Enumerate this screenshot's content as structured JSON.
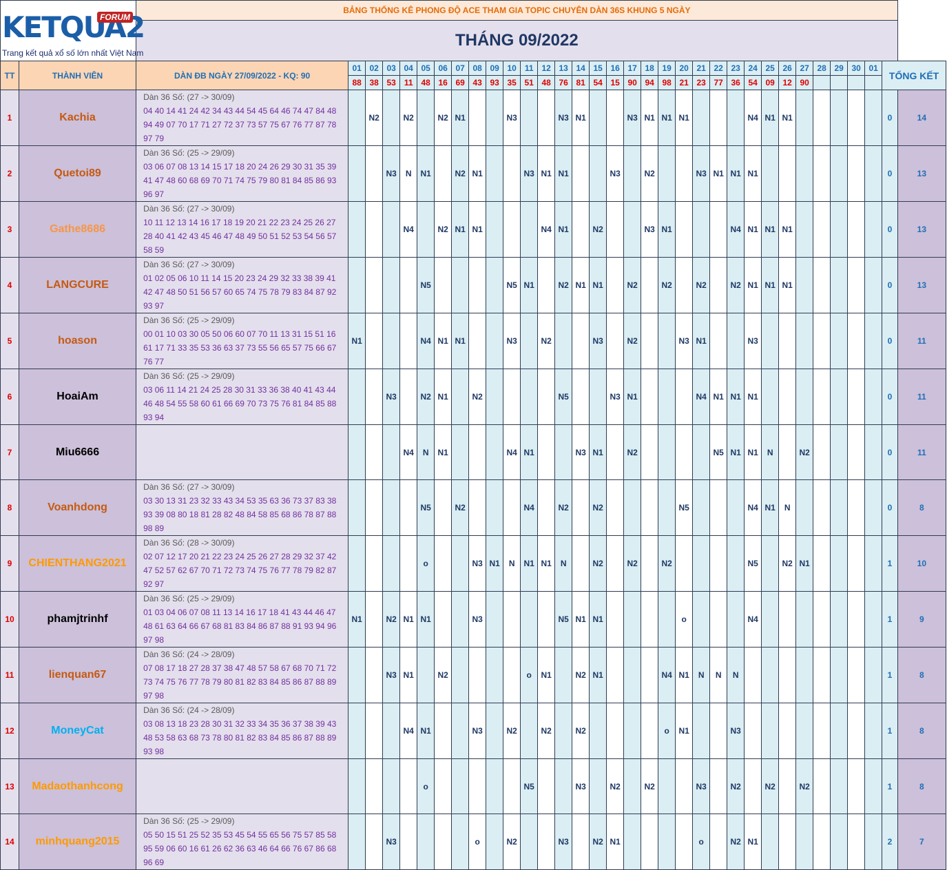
{
  "logo": {
    "main": "KETQUA2",
    "badge": "FORUM",
    "tagline": "Trang kết quả xổ số lớn nhất Việt Nam"
  },
  "title": "BẢNG THỐNG KÊ PHONG ĐỘ ACE THAM GIA TOPIC CHUYÊN DÀN 36S KHUNG 5 NGÀY",
  "month": "THÁNG 09/2022",
  "headers": {
    "tt": "TT",
    "member": "THÀNH VIÊN",
    "dan": "DÀN ĐB NGÀY 27/09/2022 - KQ: 90",
    "summary": "TỔNG KẾT"
  },
  "days": [
    "01",
    "02",
    "03",
    "04",
    "05",
    "06",
    "07",
    "08",
    "09",
    "10",
    "11",
    "12",
    "13",
    "14",
    "15",
    "16",
    "17",
    "18",
    "19",
    "20",
    "21",
    "22",
    "23",
    "24",
    "25",
    "26",
    "27",
    "28",
    "29",
    "30",
    "01"
  ],
  "results": [
    "88",
    "38",
    "53",
    "11",
    "48",
    "16",
    "69",
    "43",
    "93",
    "35",
    "51",
    "48",
    "76",
    "81",
    "54",
    "15",
    "90",
    "94",
    "98",
    "21",
    "23",
    "77",
    "36",
    "54",
    "09",
    "12",
    "90",
    "",
    "",
    "",
    ""
  ],
  "colors": {
    "red": "#e00000",
    "blue": "#1f6eb5",
    "navy": "#1f3864",
    "purple": "#7030a0"
  },
  "members": [
    {
      "tt": "1",
      "name": "Kachia",
      "name_color": "#c55a11",
      "dan_header": "Dàn 36 Số: (27 -> 30/09)",
      "dan_numbers": "04 40 14 41 24 42 34 43 44 54 45 64 46 74 47 84 48 94 49 07 70 17 71 27 72 37 73 57 75 67 76 77 87 78 97 79",
      "marks": [
        "",
        "N2",
        "",
        "N2",
        "",
        "N2",
        "N1",
        "",
        "",
        "N3",
        "",
        "",
        "N3",
        "N1",
        "",
        "",
        "N3",
        "N1",
        "N1",
        "N1",
        "",
        "",
        "",
        "N4",
        "N1",
        "N1",
        "",
        "",
        "",
        "",
        ""
      ],
      "sum1": "0",
      "sum2": "14"
    },
    {
      "tt": "2",
      "name": "Quetoi89",
      "name_color": "#c55a11",
      "dan_header": "Dàn 36 Số: (25 -> 29/09)",
      "dan_numbers": "03 06 07 08 13 14 15 17 18 20 24 26 29 30 31 35 39 41 47 48 60 68 69 70 71 74 75 79 80 81 84 85 86 93 96 97",
      "marks": [
        "",
        "",
        "N3",
        "N",
        "N1",
        "",
        "N2",
        "N1",
        "",
        "",
        "N3",
        "N1",
        "N1",
        "",
        "",
        "N3",
        "",
        "N2",
        "",
        "",
        "N3",
        "N1",
        "N1",
        "N1",
        "",
        "",
        "",
        "",
        "",
        "",
        ""
      ],
      "sum1": "0",
      "sum2": "13"
    },
    {
      "tt": "3",
      "name": "Gathe8686",
      "name_color": "#f79646",
      "dan_header": "Dàn 36 Số: (27 -> 30/09)",
      "dan_numbers": "10 11 12 13 14 16 17 18 19 20 21 22 23 24 25 26 27 28 40 41 42 43 45 46 47 48 49 50 51 52 53 54 56 57 58 59",
      "marks": [
        "",
        "",
        "",
        "N4",
        "",
        "N2",
        "N1",
        "N1",
        "",
        "",
        "",
        "N4",
        "N1",
        "",
        "N2",
        "",
        "",
        "N3",
        "N1",
        "",
        "",
        "",
        "N4",
        "N1",
        "N1",
        "N1",
        "",
        "",
        "",
        "",
        ""
      ],
      "sum1": "0",
      "sum2": "13"
    },
    {
      "tt": "4",
      "name": "LANGCURE",
      "name_color": "#c55a11",
      "dan_header": "Dàn 36 Số: (27 -> 30/09)",
      "dan_numbers": "01 02 05 06 10 11 14 15 20 23 24 29 32 33 38 39 41 42 47 48 50 51 56 57 60 65 74 75 78 79 83 84 87 92 93 97",
      "marks": [
        "",
        "",
        "",
        "",
        "N5",
        "",
        "",
        "",
        "",
        "N5",
        "N1",
        "",
        "N2",
        "N1",
        "N1",
        "",
        "N2",
        "",
        "N2",
        "",
        "N2",
        "",
        "N2",
        "N1",
        "N1",
        "N1",
        "",
        "",
        "",
        "",
        ""
      ],
      "sum1": "0",
      "sum2": "13"
    },
    {
      "tt": "5",
      "name": "hoason",
      "name_color": "#c55a11",
      "dan_header": "Dàn 36 Số: (25 -> 29/09)",
      "dan_numbers": "00 01 10 03 30 05 50 06 60 07 70 11 13 31 15 51 16 61 17 71 33 35 53 36 63 37 73 55 56 65 57 75 66 67 76 77",
      "marks": [
        "N1",
        "",
        "",
        "",
        "N4",
        "N1",
        "N1",
        "",
        "",
        "N3",
        "",
        "N2",
        "",
        "",
        "N3",
        "",
        "N2",
        "",
        "",
        "N3",
        "N1",
        "",
        "",
        "N3",
        "",
        "",
        "",
        "",
        "",
        "",
        ""
      ],
      "sum1": "0",
      "sum2": "11"
    },
    {
      "tt": "6",
      "name": "HoaiAm",
      "name_color": "#000000",
      "dan_header": "Dàn 36 Số: (25 -> 29/09)",
      "dan_numbers": "03 06 11 14 21 24 25 28 30 31 33 36 38 40 41 43 44 46 48 54 55 58 60 61 66 69 70 73 75 76 81 84 85 88 93 94",
      "marks": [
        "",
        "",
        "N3",
        "",
        "N2",
        "N1",
        "",
        "N2",
        "",
        "",
        "",
        "",
        "N5",
        "",
        "",
        "N3",
        "N1",
        "",
        "",
        "",
        "N4",
        "N1",
        "N1",
        "N1",
        "",
        "",
        "",
        "",
        "",
        "",
        ""
      ],
      "sum1": "0",
      "sum2": "11"
    },
    {
      "tt": "7",
      "name": "Miu6666",
      "name_color": "#000000",
      "dan_header": "",
      "dan_numbers": "",
      "marks": [
        "",
        "",
        "",
        "N4",
        "N",
        "N1",
        "",
        "",
        "",
        "N4",
        "N1",
        "",
        "",
        "N3",
        "N1",
        "",
        "N2",
        "",
        "",
        "",
        "",
        "N5",
        "N1",
        "N1",
        "N",
        "",
        "N2",
        "",
        "",
        "",
        ""
      ],
      "sum1": "0",
      "sum2": "11"
    },
    {
      "tt": "8",
      "name": "Voanhdong",
      "name_color": "#c55a11",
      "dan_header": "Dàn 36 Số: (27 -> 30/09)",
      "dan_numbers": "03 30 13 31 23 32 33 43 34 53 35 63 36 73 37 83 38 93 39 08 80 18 81 28 82 48 84 58 85 68 86 78 87 88 98 89",
      "marks": [
        "",
        "",
        "",
        "",
        "N5",
        "",
        "N2",
        "",
        "",
        "",
        "N4",
        "",
        "N2",
        "",
        "N2",
        "",
        "",
        "",
        "",
        "N5",
        "",
        "",
        "",
        "N4",
        "N1",
        "N",
        "",
        "",
        "",
        "",
        ""
      ],
      "sum1": "0",
      "sum2": "8"
    },
    {
      "tt": "9",
      "name": "CHIENTHANG2021",
      "name_color": "#ff9900",
      "dan_header": "Dàn 36 Số: (28 -> 30/09)",
      "dan_numbers": "02 07 12 17 20 21 22 23 24 25 26 27 28 29 32 37 42 47 52 57 62 67 70 71 72 73 74 75 76 77 78 79 82 87 92 97",
      "marks": [
        "",
        "",
        "",
        "",
        "o",
        "",
        "",
        "N3",
        "N1",
        "N",
        "N1",
        "N1",
        "N",
        "",
        "N2",
        "",
        "N2",
        "",
        "N2",
        "",
        "",
        "",
        "",
        "N5",
        "",
        "N2",
        "N1",
        "",
        "",
        "",
        ""
      ],
      "sum1": "1",
      "sum2": "10"
    },
    {
      "tt": "10",
      "name": "phamjtrinhf",
      "name_color": "#000000",
      "dan_header": "Dàn 36 Số: (25 -> 29/09)",
      "dan_numbers": "01 03 04 06 07 08 11 13 14 16 17 18 41 43 44 46 47 48 61 63 64 66 67 68 81 83 84 86 87 88 91 93 94 96 97 98",
      "marks": [
        "N1",
        "",
        "N2",
        "N1",
        "N1",
        "",
        "",
        "N3",
        "",
        "",
        "",
        "",
        "N5",
        "N1",
        "N1",
        "",
        "",
        "",
        "",
        "o",
        "",
        "",
        "",
        "N4",
        "",
        "",
        "",
        "",
        "",
        "",
        ""
      ],
      "sum1": "1",
      "sum2": "9"
    },
    {
      "tt": "11",
      "name": "lienquan67",
      "name_color": "#c55a11",
      "dan_header": "Dàn 36 Số: (24 -> 28/09)",
      "dan_numbers": "07 08 17 18 27 28 37 38 47 48 57 58 67 68 70 71 72 73 74 75 76 77 78 79 80 81 82 83 84 85 86 87 88 89 97 98",
      "marks": [
        "",
        "",
        "N3",
        "N1",
        "",
        "N2",
        "",
        "",
        "",
        "",
        "o",
        "N1",
        "",
        "N2",
        "N1",
        "",
        "",
        "",
        "N4",
        "N1",
        "N",
        "N",
        "N",
        "",
        "",
        "",
        "",
        "",
        "",
        "",
        ""
      ],
      "sum1": "1",
      "sum2": "8"
    },
    {
      "tt": "12",
      "name": "MoneyCat",
      "name_color": "#00b0f0",
      "dan_header": "Dàn 36 Số: (24 -> 28/09)",
      "dan_numbers": "03 08 13 18 23 28 30 31 32 33 34 35 36 37 38 39 43 48 53 58 63 68 73 78 80 81 82 83 84 85 86 87 88 89 93 98",
      "marks": [
        "",
        "",
        "",
        "N4",
        "N1",
        "",
        "",
        "N3",
        "",
        "N2",
        "",
        "N2",
        "",
        "N2",
        "",
        "",
        "",
        "",
        "o",
        "N1",
        "",
        "",
        "N3",
        "",
        "",
        "",
        "",
        "",
        "",
        "",
        ""
      ],
      "sum1": "1",
      "sum2": "8"
    },
    {
      "tt": "13",
      "name": "Madaothanhcong",
      "name_color": "#ff9900",
      "dan_header": "",
      "dan_numbers": "",
      "marks": [
        "",
        "",
        "",
        "",
        "o",
        "",
        "",
        "",
        "",
        "",
        "N5",
        "",
        "",
        "N3",
        "",
        "N2",
        "",
        "N2",
        "",
        "",
        "N3",
        "",
        "N2",
        "",
        "N2",
        "",
        "N2",
        "",
        "",
        "",
        ""
      ],
      "sum1": "1",
      "sum2": "8"
    },
    {
      "tt": "14",
      "name": "minhquang2015",
      "name_color": "#ff9900",
      "dan_header": "Dàn 36 Số: (25 -> 29/09)",
      "dan_numbers": "05 50 15 51 25 52 35 53 45 54 55 65 56 75 57 85 58 95 59 06 60 16 61 26 62 36 63 46 64 66 76 67 86 68 96 69",
      "marks": [
        "",
        "",
        "N3",
        "",
        "",
        "",
        "",
        "o",
        "",
        "N2",
        "",
        "",
        "N3",
        "",
        "N2",
        "N1",
        "",
        "",
        "",
        "",
        "o",
        "",
        "N2",
        "N1",
        "",
        "",
        "",
        "",
        "",
        "",
        ""
      ],
      "sum1": "2",
      "sum2": "7"
    }
  ]
}
